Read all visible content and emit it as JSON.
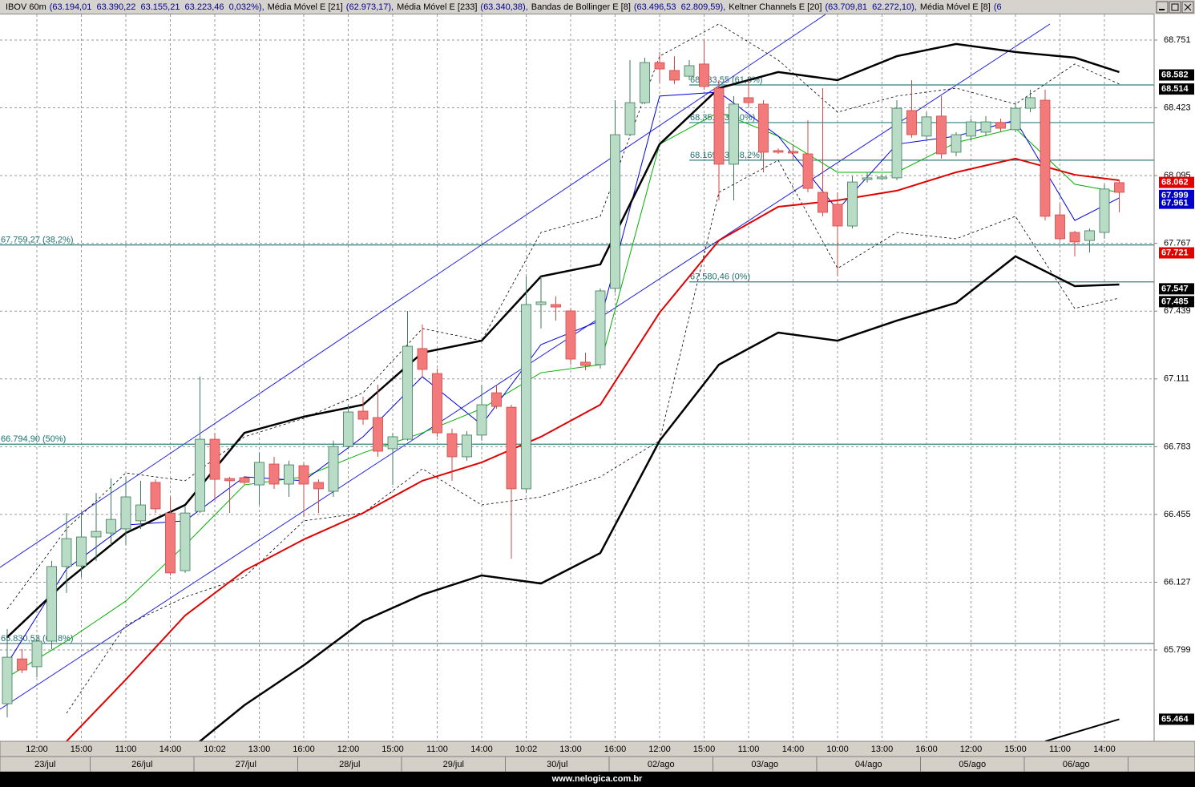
{
  "header": [
    {
      "name": "IBOV 60m",
      "value": "(63.194,01  63.390,22  63.155,21  63.223,46  0,032%),"
    },
    {
      "name": "Média Móvel E [21]",
      "value": "(62.973,17),"
    },
    {
      "name": "Média Móvel E [233]",
      "value": "(63.340,38),"
    },
    {
      "name": "Bandas de Bollinger E [8]",
      "value": "(63.496,53  62.809,59),"
    },
    {
      "name": "Keltner Channels E [20]",
      "value": "(63.709,81  62.272,10),"
    },
    {
      "name": "Média Móvel E [8]",
      "value": "(6"
    }
  ],
  "footer": "www.nelogica.com.br",
  "chart_data": {
    "type": "candlestick",
    "ylim": [
      65.357,
      68.875
    ],
    "yticks": [
      68.751,
      68.423,
      68.095,
      67.767,
      67.439,
      67.111,
      66.783,
      66.455,
      66.127,
      65.799
    ],
    "grid": true,
    "up_color": "#b9dcc6",
    "down_color": "#f27a7a",
    "categories": [
      null,
      null,
      "12:00",
      null,
      null,
      "15:00",
      null,
      null,
      "11:00",
      null,
      null,
      "14:00",
      null,
      null,
      "10:02",
      null,
      null,
      "13:00",
      null,
      null,
      "16:00",
      null,
      null,
      "12:00",
      null,
      null,
      "15:00",
      null,
      null,
      "11:00",
      null,
      null,
      "14:00",
      null,
      null,
      "10:02",
      null,
      null,
      "13:00",
      null,
      null,
      "16:00",
      null,
      null,
      "12:00",
      null,
      null,
      "15:00",
      null,
      null,
      "11:00",
      null,
      null,
      "14:00",
      null,
      null,
      "10:00",
      null,
      null,
      "13:00",
      null,
      null,
      "16:00",
      null,
      null,
      "12:00",
      null,
      null,
      "15:00",
      null,
      null,
      "11:00",
      null,
      null,
      "14:00",
      null
    ],
    "dates": [
      "23/jul",
      "26/jul",
      "27/jul",
      "28/jul",
      "29/jul",
      "30/jul",
      "02/ago",
      "03/ago",
      "04/ago",
      "05/ago",
      "06/ago"
    ],
    "open": [
      65.539,
      65.756,
      65.718,
      65.842,
      66.203,
      66.206,
      66.346,
      66.365,
      66.385,
      66.424,
      66.61,
      66.462,
      66.183,
      66.47,
      66.819,
      66.629,
      66.633,
      66.598,
      66.699,
      66.602,
      66.691,
      66.61,
      66.567,
      66.784,
      66.955,
      66.924,
      66.773,
      66.819,
      67.258,
      67.137,
      66.846,
      66.734,
      66.839,
      67.044,
      66.974,
      66.579,
      67.471,
      67.471,
      67.44,
      67.192,
      67.18,
      67.549,
      68.293,
      68.448,
      68.642,
      68.604,
      68.576,
      68.635,
      68.518,
      68.15,
      68.472,
      68.441,
      68.216,
      68.212,
      68.2,
      68.014,
      67.956,
      67.851,
      68.076,
      68.08,
      68.084,
      68.41,
      68.286,
      68.383,
      68.208,
      68.286,
      68.305,
      68.352,
      68.317,
      68.421,
      68.46,
      67.905,
      67.82,
      67.781,
      67.82,
      68.061
    ],
    "high": [
      65.9,
      65.803,
      65.861,
      66.23,
      66.462,
      66.462,
      66.559,
      66.629,
      66.637,
      66.618,
      66.625,
      66.54,
      66.493,
      67.122,
      66.85,
      66.637,
      66.641,
      66.753,
      66.734,
      66.715,
      66.703,
      66.625,
      66.812,
      66.986,
      67.025,
      67.083,
      66.85,
      67.44,
      67.374,
      67.161,
      66.87,
      66.858,
      67.083,
      67.083,
      66.986,
      67.607,
      67.607,
      67.51,
      67.452,
      67.238,
      67.549,
      68.46,
      68.654,
      68.666,
      68.693,
      68.673,
      68.654,
      68.751,
      68.557,
      68.48,
      68.557,
      68.46,
      68.227,
      68.247,
      68.363,
      68.518,
      68.014,
      68.092,
      68.111,
      68.099,
      68.46,
      68.557,
      68.402,
      68.48,
      68.305,
      68.371,
      68.383,
      68.371,
      68.448,
      68.511,
      68.511,
      67.956,
      67.828,
      67.839,
      68.053,
      68.072
    ],
    "low": [
      65.473,
      65.687,
      65.667,
      65.803,
      66.075,
      66.152,
      66.23,
      66.307,
      66.307,
      66.385,
      66.462,
      66.16,
      66.172,
      66.462,
      66.521,
      66.462,
      66.598,
      66.501,
      66.579,
      66.54,
      66.443,
      66.462,
      66.54,
      66.773,
      66.889,
      66.734,
      66.598,
      66.812,
      67.122,
      66.831,
      66.618,
      66.715,
      66.812,
      66.967,
      66.241,
      66.559,
      67.355,
      67.393,
      67.18,
      67.153,
      67.161,
      67.529,
      68.286,
      68.441,
      68.545,
      68.538,
      68.557,
      68.511,
      67.975,
      67.975,
      68.421,
      68.111,
      68.2,
      68.169,
      68.014,
      67.898,
      67.607,
      67.839,
      68.061,
      68.072,
      68.072,
      68.278,
      68.266,
      68.177,
      68.189,
      68.266,
      68.286,
      68.305,
      68.305,
      68.402,
      67.878,
      67.781,
      67.704,
      67.723,
      67.789,
      67.917
    ],
    "close": [
      65.764,
      65.702,
      65.842,
      66.203,
      66.338,
      66.346,
      66.373,
      66.431,
      66.54,
      66.501,
      66.482,
      66.172,
      66.462,
      66.819,
      66.625,
      66.618,
      66.61,
      66.707,
      66.602,
      66.695,
      66.602,
      66.579,
      66.784,
      66.951,
      66.916,
      66.761,
      66.831,
      67.269,
      67.157,
      66.85,
      66.734,
      66.839,
      66.986,
      66.978,
      66.579,
      67.471,
      67.483,
      67.459,
      67.207,
      67.176,
      67.537,
      68.293,
      68.448,
      68.642,
      68.611,
      68.557,
      68.627,
      68.526,
      68.15,
      68.441,
      68.448,
      68.208,
      68.208,
      68.204,
      68.033,
      67.917,
      67.851,
      68.064,
      68.084,
      68.088,
      68.421,
      68.293,
      68.379,
      68.2,
      68.293,
      68.355,
      68.355,
      68.324,
      68.421,
      68.472,
      67.898,
      67.789,
      67.774,
      67.828,
      68.03,
      68.014
    ],
    "lines": [
      {
        "color": "#000000",
        "width": 0.8,
        "dash": "3,3",
        "x": [
          0,
          4,
          8,
          12,
          16,
          20,
          24,
          28,
          32,
          36,
          40,
          44,
          48,
          52,
          56,
          60,
          64,
          68,
          72,
          75
        ],
        "values": [
          65.997,
          66.385,
          66.656,
          66.618,
          66.831,
          66.92,
          67.044,
          67.355,
          67.296,
          67.82,
          67.898,
          68.673,
          68.829,
          68.654,
          68.402,
          68.48,
          68.518,
          68.441,
          68.635,
          68.538
        ]
      },
      {
        "color": "#000000",
        "width": 0.8,
        "dash": "3,3",
        "x": [
          4,
          8,
          12,
          16,
          20,
          24,
          28,
          32,
          36,
          40,
          44,
          48,
          52,
          56,
          60,
          64,
          68,
          72,
          75
        ],
        "values": [
          65.493,
          65.919,
          66.055,
          66.152,
          66.424,
          66.462,
          66.676,
          66.501,
          66.54,
          66.637,
          66.812,
          68.014,
          68.169,
          67.646,
          67.82,
          67.789,
          67.898,
          67.452,
          67.502
        ]
      },
      {
        "color": "#00b000",
        "width": 1,
        "x": [
          0,
          4,
          8,
          12,
          16,
          20,
          24,
          28,
          32,
          36,
          40,
          44,
          48,
          52,
          56,
          60,
          64,
          68,
          72,
          75
        ],
        "values": [
          65.667,
          65.842,
          66.036,
          66.307,
          66.598,
          66.637,
          66.753,
          66.85,
          66.967,
          67.141,
          67.18,
          68.247,
          68.402,
          68.286,
          68.111,
          68.111,
          68.255,
          68.324,
          68.053,
          68.014
        ]
      },
      {
        "color": "#0000e0",
        "width": 1,
        "x": [
          0,
          4,
          8,
          12,
          16,
          20,
          24,
          28,
          32,
          36,
          40,
          44,
          48,
          52,
          56,
          60,
          64,
          68,
          72,
          75
        ],
        "values": [
          65.733,
          66.191,
          66.404,
          66.424,
          66.637,
          66.618,
          66.831,
          67.122,
          66.889,
          67.277,
          67.393,
          68.48,
          68.499,
          68.286,
          67.929,
          68.247,
          68.286,
          68.363,
          67.878,
          67.987
        ]
      },
      {
        "color": "#000000",
        "width": 2.5,
        "x": [
          0,
          4,
          8,
          12,
          16,
          20,
          24,
          28,
          32,
          36,
          40,
          44,
          48,
          52,
          56,
          60,
          64,
          68,
          72,
          75
        ],
        "values": [
          65.861,
          66.133,
          66.365,
          66.501,
          66.85,
          66.928,
          66.986,
          67.238,
          67.296,
          67.607,
          67.665,
          68.247,
          68.518,
          68.596,
          68.557,
          68.673,
          68.732,
          68.693,
          68.666,
          68.596
        ]
      },
      {
        "color": "#000000",
        "width": 2.5,
        "x": [
          12,
          16,
          20,
          24,
          28,
          32,
          36,
          40,
          44,
          48,
          52,
          56,
          60,
          64,
          68,
          72,
          75
        ],
        "values": [
          65.299,
          65.532,
          65.725,
          65.939,
          66.067,
          66.16,
          66.121,
          66.268,
          66.812,
          67.18,
          67.335,
          67.296,
          67.393,
          67.479,
          67.704,
          67.56,
          67.568
        ]
      },
      {
        "color": "#e00000",
        "width": 2,
        "x": [
          4,
          8,
          12,
          16,
          20,
          24,
          28,
          32,
          36,
          40,
          44,
          48,
          52,
          56,
          60,
          64,
          68,
          72,
          75
        ],
        "values": [
          65.357,
          65.656,
          65.966,
          66.183,
          66.334,
          66.462,
          66.618,
          66.707,
          66.831,
          66.986,
          67.432,
          67.781,
          67.944,
          67.975,
          68.022,
          68.111,
          68.177,
          68.099,
          68.072
        ]
      },
      {
        "color": "#000000",
        "width": 2,
        "x": [
          70,
          75
        ],
        "values": [
          65.357,
          65.464
        ]
      }
    ],
    "fib_left": [
      {
        "value": 67.75927,
        "label": "67.759,27 (38,2%)"
      },
      {
        "value": 66.7949,
        "label": "66.794,90 (50%)"
      },
      {
        "value": 65.83053,
        "label": "65.830,53 (61,8%)"
      }
    ],
    "fib_right": {
      "start": 46,
      "levels": [
        {
          "value": 68.53355,
          "label": "68.533,55 (61,8%)"
        },
        {
          "value": 68.35153,
          "label": "68.351,53 (50%)"
        },
        {
          "value": 68.16953,
          "label": "68.169,53 (38,2%)"
        },
        {
          "value": 67.58046,
          "label": "67.580,46 (0%)"
        }
      ]
    },
    "price_labels": [
      {
        "value": 68.582,
        "color": "#000000"
      },
      {
        "value": 68.514,
        "color": "#000000"
      },
      {
        "value": 68.062,
        "color": "#e00000"
      },
      {
        "value": 67.999,
        "color": "#0000c8"
      },
      {
        "value": 67.961,
        "color": "#0000c8"
      },
      {
        "value": 67.721,
        "color": "#e00000"
      },
      {
        "value": 67.547,
        "color": "#000000"
      },
      {
        "value": 67.485,
        "color": "#000000"
      },
      {
        "value": 65.464,
        "color": "#000000"
      }
    ]
  }
}
